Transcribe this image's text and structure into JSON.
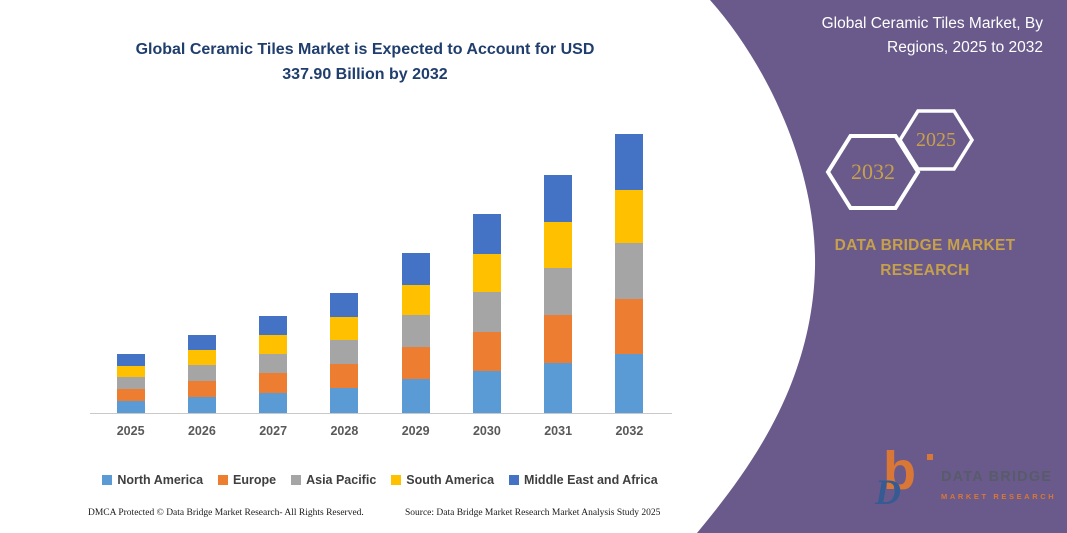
{
  "colors": {
    "panel_purple": "#695A8B",
    "title_navy": "#1F3E6D",
    "gold": "#C6A04A",
    "axis_line": "#C9C9C9",
    "axis_label": "#595959",
    "legend_text": "#3F3F3F",
    "logo_orange": "#E87B2B",
    "logo_blue": "#2E5C94"
  },
  "chart": {
    "title": "Global Ceramic Tiles Market is Expected to Account for USD 337.90 Billion by 2032"
  },
  "panel": {
    "title": "Global Ceramic Tiles Market, By Regions, 2025 to 2032",
    "hex_back_year": "2032",
    "hex_front_year": "2025",
    "brand_name": "DATA BRIDGE MARKET RESEARCH",
    "logo_monogram_b": "b",
    "logo_monogram_d": "D",
    "logo_line1": "DATA BRIDGE",
    "logo_line2": "MARKET RESEARCH"
  },
  "footer": {
    "left": "DMCA Protected © Data Bridge Market Research-  All Rights Reserved.",
    "right": "Source: Data Bridge Market Research  Market Analysis Study 2025"
  },
  "chart_data": {
    "type": "bar",
    "stacked": true,
    "title": "Global Ceramic Tiles Market is Expected to Account for USD 337.90 Billion by 2032",
    "xlabel": "",
    "ylabel": "",
    "ylim": [
      0,
      342
    ],
    "grid": false,
    "legend_position": "bottom",
    "categories": [
      "2025",
      "2026",
      "2027",
      "2028",
      "2029",
      "2030",
      "2031",
      "2032"
    ],
    "series": [
      {
        "name": "North America",
        "color": "#5B9BD5",
        "values": [
          15.1,
          20.0,
          24.8,
          30.5,
          40.7,
          50.6,
          60.7,
          71.0
        ]
      },
      {
        "name": "Europe",
        "color": "#ED7D31",
        "values": [
          14.4,
          19.0,
          23.6,
          29.0,
          38.8,
          48.2,
          57.8,
          67.6
        ]
      },
      {
        "name": "Asia Pacific",
        "color": "#A5A5A5",
        "values": [
          14.4,
          19.0,
          23.6,
          29.0,
          38.8,
          48.2,
          57.8,
          67.6
        ]
      },
      {
        "name": "South America",
        "color": "#FFC000",
        "values": [
          13.7,
          18.0,
          22.4,
          27.5,
          36.9,
          45.8,
          54.9,
          64.1
        ]
      },
      {
        "name": "Middle East and Africa",
        "color": "#4472C4",
        "values": [
          14.4,
          19.0,
          23.6,
          29.0,
          38.8,
          48.2,
          57.8,
          67.6
        ]
      }
    ]
  }
}
